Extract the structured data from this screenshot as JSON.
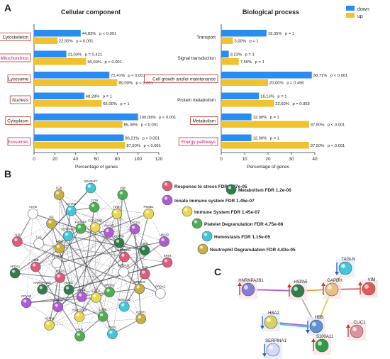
{
  "panel_labels": {
    "a": "A",
    "b": "B",
    "c": "C"
  },
  "legend": {
    "down": "down",
    "up": "up",
    "down_color": "#2a8cf0",
    "up_color": "#f0c230"
  },
  "chart_data": [
    {
      "type": "bar",
      "title": "Cellular component",
      "xlabel": "Percentage of genes",
      "xlim": [
        0,
        120
      ],
      "ticks": [
        "0",
        "20",
        "40",
        "60",
        "80",
        "100",
        "120"
      ],
      "categories": [
        "Cytoskeleton",
        "Mitochondrion",
        "Lysosome",
        "Nucleus",
        "Cytoplasm",
        "Exosomes"
      ],
      "highlight_color": [
        "#c0392b",
        "#c0392b",
        "#c0392b",
        "#c0392b",
        "#c0392b",
        "#c0392b"
      ],
      "label_color": [
        "#222222",
        "#c0156a",
        "#222222",
        "#222222",
        "#222222",
        "#c0156a"
      ],
      "series": [
        {
          "name": "down",
          "values": [
            44.83,
            31.03,
            72.41,
            48.28,
            100,
            86.21
          ],
          "labels": [
            "44,83%",
            "31,03%",
            "72,41%",
            "48,28%",
            "100,00%",
            "86,21%"
          ],
          "p": [
            "p < 0.001",
            "p = 0.421",
            "p < 0.001",
            "p = 1",
            "p < 0.001",
            "p < 0.001"
          ]
        },
        {
          "name": "up",
          "values": [
            22.5,
            50,
            80,
            65,
            85,
            87.5
          ],
          "labels": [
            "22,50%",
            "50,00%",
            "80,00%",
            "65,00%",
            "85,00%",
            "87,50%"
          ],
          "p": [
            "p = 0.001",
            "p < 0.001",
            "p < 0.001",
            "p = 1",
            "p < 0.001",
            "p < 0.001"
          ]
        }
      ]
    },
    {
      "type": "bar",
      "title": "Biological process",
      "xlabel": "Percentage of genes",
      "xlim": [
        0,
        40
      ],
      "ticks": [
        "0",
        "10",
        "20",
        "30",
        "40"
      ],
      "categories": [
        "Transport",
        "Signal transduction",
        "Cell growth and/or maintenance",
        "Protein metabolism",
        "Metabolism",
        "Energy pathways"
      ],
      "boxed": [
        false,
        false,
        true,
        false,
        true,
        true
      ],
      "label_color": [
        "#222222",
        "#222222",
        "#222222",
        "#222222",
        "#222222",
        "#c0156a"
      ],
      "series": [
        {
          "name": "down",
          "values": [
            19.35,
            3.23,
            38.71,
            16.13,
            12.9,
            12.9
          ],
          "labels": [
            "19,35%",
            "3,23%",
            "38,71%",
            "16,13%",
            "12,90%",
            "12,90%"
          ],
          "p": [
            "p = 1",
            "p = 1",
            "p < 0.001",
            "p = 1",
            "p = 1",
            "p = 1"
          ]
        },
        {
          "name": "up",
          "values": [
            5,
            7.5,
            20,
            22.5,
            37.5,
            37.5
          ],
          "labels": [
            "5,00%",
            "7,50%",
            "20,00%",
            "22,50%",
            "37,50%",
            "37,50%"
          ],
          "p": [
            "p = 1",
            "p = 1",
            "p = 0.496",
            "p = 0.353",
            "p < 0.001",
            "p < 0.001"
          ]
        }
      ]
    }
  ],
  "network_b": {
    "genes": [
      "KRT9",
      "MRPS31",
      "PRDX2",
      "PRDX1",
      "HMGCS2",
      "CLIC1",
      "GSTP1",
      "LAP3",
      "SOD1",
      "ENO1",
      "HSD17B10",
      "NME1",
      "PKM",
      "GAPDH",
      "PDIA3",
      "HSPA5",
      "HNRNPA2B1",
      "PSMB3",
      "CRYAB",
      "HBB",
      "HBA2",
      "APOA1",
      "CA1",
      "SERPINA1",
      "ALB",
      "GC",
      "LGALS3",
      "ACTB",
      "ACTN4",
      "CCDC64B",
      "FGB",
      "CCNI",
      "YWHAB",
      "NDUFAF7",
      "TPM2",
      "BLVRB",
      "VIM",
      "TAGLN",
      "ARHGDIA",
      "PSME1",
      "CBR1",
      "S100A11",
      "UBA52",
      "CAT"
    ],
    "terms": [
      {
        "label": "Response to stress FDR 4.97e-05",
        "color": "#e05a7a"
      },
      {
        "label": "Metabolism FDR 1.2e-06",
        "color": "#2e7d4a"
      },
      {
        "label": "Innate immune system FDR 1.45e-07",
        "color": "#b05ad8"
      },
      {
        "label": "Immune System FDR 1.45e-07",
        "color": "#e8d84a"
      },
      {
        "label": "Platelet Degranulation FDR 4.75e-08",
        "color": "#4caf50"
      },
      {
        "label": "Hemostasis FDR 1.15e-05",
        "color": "#40c8d8"
      },
      {
        "label": "Neutrophil Degranulation FDR 4.83e-05",
        "color": "#c8b040"
      }
    ]
  },
  "network_c": {
    "nodes": [
      {
        "name": "TAGLN",
        "direction": "down"
      },
      {
        "name": "HNRNPA2B1",
        "direction": "up"
      },
      {
        "name": "HSPA5",
        "direction": "up"
      },
      {
        "name": "GAPDH",
        "direction": "up"
      },
      {
        "name": "VIM",
        "direction": "up"
      },
      {
        "name": "HBA2",
        "direction": "down"
      },
      {
        "name": "HBB",
        "direction": "down"
      },
      {
        "name": "CLIC1",
        "direction": "up"
      },
      {
        "name": "SERPINA1",
        "direction": "down"
      },
      {
        "name": "S100A11",
        "direction": "up"
      }
    ]
  }
}
